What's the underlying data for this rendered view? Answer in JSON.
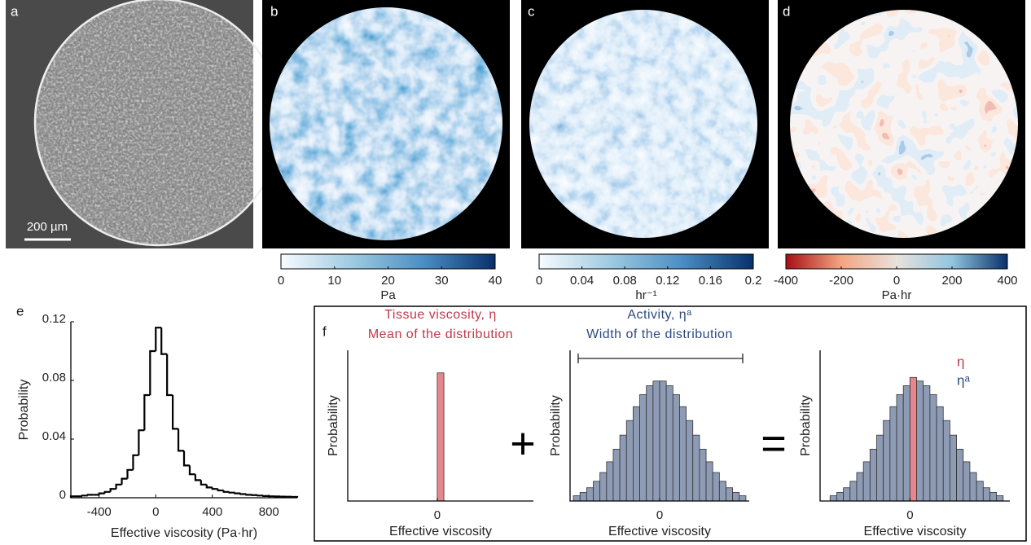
{
  "panel_labels": [
    "a",
    "b",
    "c",
    "d",
    "e",
    "f"
  ],
  "scale_bar": "200 µm",
  "operators": [
    "+",
    "="
  ],
  "chart_data": [
    {
      "type": "colorbar",
      "xlabel": "Pa",
      "xlim": [
        0,
        40
      ],
      "xticks": [
        0,
        10,
        20,
        30,
        40
      ],
      "colors": [
        "#f7fbff",
        "#9ecae1",
        "#4a8ec4",
        "#08306b"
      ]
    },
    {
      "type": "colorbar",
      "xlabel": "hr⁻¹",
      "xlim": [
        0,
        0.2
      ],
      "xticks": [
        0,
        0.04,
        0.08,
        0.12,
        0.16,
        0.2
      ],
      "colors": [
        "#f7fbff",
        "#9ecae1",
        "#4a8ec4",
        "#08306b"
      ]
    },
    {
      "type": "colorbar",
      "xlabel": "Pa·hr",
      "xlim": [
        -400,
        400
      ],
      "xticks": [
        -400,
        -200,
        0,
        200,
        400
      ],
      "colors": [
        "#a50f15",
        "#f4a582",
        "#e8e2dc",
        "#92c5de",
        "#08306b"
      ]
    },
    {
      "type": "histogram",
      "histtype": "step",
      "xlabel": "Effective viscosity (Pa·hr)",
      "ylabel": "Probability",
      "xlim": [
        -600,
        1000
      ],
      "xticks": [
        -400,
        0,
        400,
        800
      ],
      "ylim": [
        0,
        0.12
      ],
      "yticks": [
        0,
        0.04,
        0.08,
        0.12
      ],
      "color": "#000000",
      "bins": [
        -600,
        -560,
        -520,
        -480,
        -440,
        -400,
        -360,
        -320,
        -280,
        -240,
        -200,
        -160,
        -120,
        -80,
        -40,
        0,
        40,
        80,
        120,
        160,
        200,
        240,
        280,
        320,
        360,
        400,
        440,
        480,
        520,
        560,
        600,
        640,
        680,
        720,
        760,
        800,
        840,
        880,
        920,
        960,
        1000
      ],
      "values": [
        0.001,
        0.001,
        0.0015,
        0.002,
        0.002,
        0.003,
        0.004,
        0.006,
        0.009,
        0.013,
        0.019,
        0.029,
        0.046,
        0.07,
        0.1,
        0.116,
        0.098,
        0.07,
        0.047,
        0.032,
        0.022,
        0.016,
        0.012,
        0.009,
        0.007,
        0.006,
        0.005,
        0.004,
        0.0035,
        0.003,
        0.0025,
        0.002,
        0.0018,
        0.0015,
        0.0012,
        0.001,
        0.0009,
        0.0008,
        0.0007,
        0.0006
      ]
    },
    {
      "type": "histogram",
      "histtype": "bar",
      "title": "Tissue viscosity, η",
      "subtitle": "Mean of the distribution",
      "title_color": "#c0394b",
      "xlabel": "Effective viscosity",
      "ylabel": "Probability",
      "xlim": [
        -13.5,
        14.5
      ],
      "xticks": [
        0
      ],
      "ylim": [
        0,
        1
      ],
      "series": [
        {
          "color": "#e8868e",
          "bins": [
            0,
            1
          ],
          "values": [
            0.85
          ]
        }
      ]
    },
    {
      "type": "histogram",
      "histtype": "bar",
      "title": "Activity, ηᵃ",
      "subtitle": "Width of the distribution",
      "title_color": "#2f4a7f",
      "xlabel": "Effective viscosity",
      "ylabel": "Probability",
      "xlim": [
        -13.5,
        13.5
      ],
      "xticks": [
        0
      ],
      "ylim": [
        0,
        1
      ],
      "series": [
        {
          "color": "#8e9bb5",
          "bins": [
            -13,
            -12,
            -11,
            -10,
            -9,
            -8,
            -7,
            -6,
            -5,
            -4,
            -3,
            -2,
            -1,
            0,
            1,
            2,
            3,
            4,
            5,
            6,
            7,
            8,
            9,
            10,
            11,
            12,
            13
          ],
          "values": [
            0.035,
            0.057,
            0.088,
            0.131,
            0.189,
            0.26,
            0.344,
            0.437,
            0.534,
            0.626,
            0.706,
            0.765,
            0.796,
            0.796,
            0.765,
            0.706,
            0.626,
            0.534,
            0.437,
            0.344,
            0.26,
            0.189,
            0.131,
            0.088,
            0.057,
            0.035
          ]
        }
      ]
    },
    {
      "type": "histogram",
      "histtype": "bar",
      "xlabel": "Effective viscosity",
      "ylabel": "Probability",
      "xlim": [
        -13.5,
        15
      ],
      "xticks": [
        0
      ],
      "ylim": [
        0,
        1
      ],
      "series": [
        {
          "name": "η",
          "color": "#e8868e",
          "label_color": "#c0394b",
          "bins": [
            0,
            1
          ],
          "values": [
            0.82
          ]
        },
        {
          "name": "ηᵃ",
          "color": "#8e9bb5",
          "label_color": "#2f4a7f",
          "bins": [
            -12,
            -11,
            -10,
            -9,
            -8,
            -7,
            -6,
            -5,
            -4,
            -3,
            -2,
            -1,
            0,
            1,
            2,
            3,
            4,
            5,
            6,
            7,
            8,
            9,
            10,
            11,
            12,
            13,
            14
          ],
          "values": [
            0.035,
            0.057,
            0.088,
            0.131,
            0.189,
            0.26,
            0.344,
            0.437,
            0.534,
            0.626,
            0.706,
            0.765,
            0.796,
            0.796,
            0.765,
            0.706,
            0.626,
            0.534,
            0.437,
            0.344,
            0.26,
            0.189,
            0.131,
            0.088,
            0.057,
            0.035
          ]
        }
      ]
    }
  ]
}
